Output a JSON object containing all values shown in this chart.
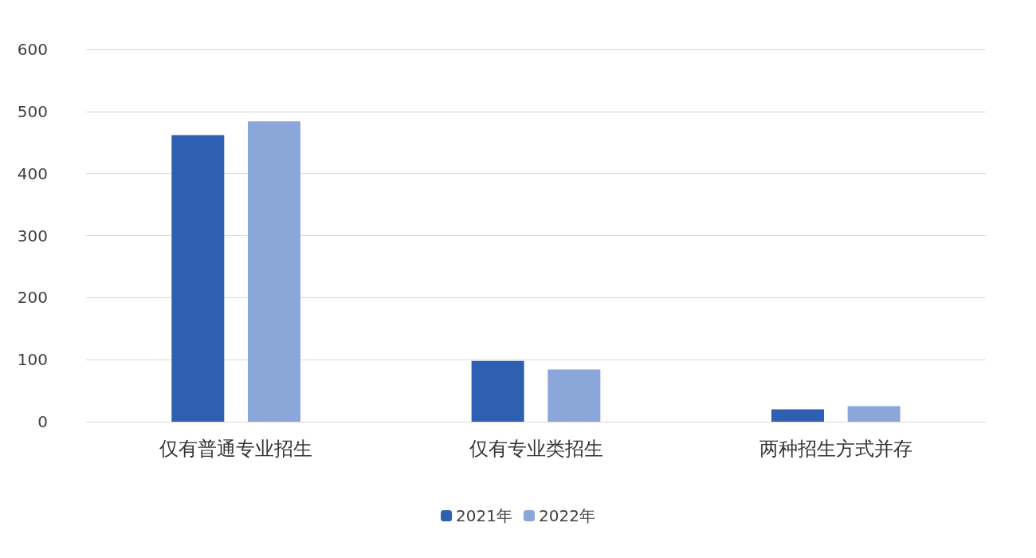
{
  "chart_data": {
    "type": "bar",
    "categories": [
      "仅有普通专业招生",
      "仅有专业类招生",
      "两种招生方式并存"
    ],
    "series": [
      {
        "name": "2021年",
        "color": "#2f5fb0",
        "values": [
          462,
          98,
          20
        ]
      },
      {
        "name": "2022年",
        "color": "#8ba6d9",
        "values": [
          484,
          84,
          25
        ]
      }
    ],
    "ylim": [
      0,
      600
    ],
    "yticks": [
      0,
      100,
      200,
      300,
      400,
      500,
      600
    ],
    "grid": "y",
    "legend": "bottom"
  }
}
